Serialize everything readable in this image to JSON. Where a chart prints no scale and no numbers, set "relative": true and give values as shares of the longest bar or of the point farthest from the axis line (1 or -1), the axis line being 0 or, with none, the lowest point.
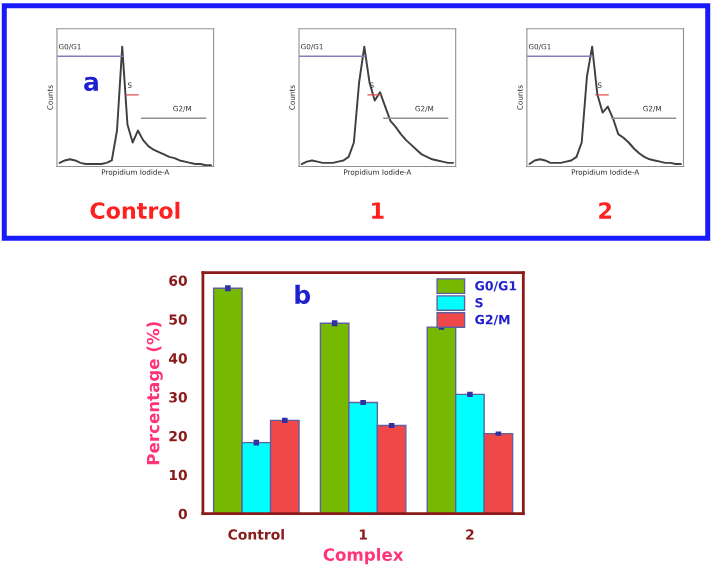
{
  "chart_data": [
    {
      "type": "line",
      "relative": true,
      "title": "Control",
      "xlabel": "Propidium Iodide-A",
      "ylabel": "Counts",
      "tick_labels": false,
      "color": "#404040",
      "annotations": [
        "G0/G1",
        "S",
        "G2/M",
        "a"
      ],
      "categories": [
        null,
        null,
        null,
        null,
        null,
        null,
        null,
        null,
        null,
        null,
        null,
        null,
        null,
        null,
        null,
        null,
        null,
        null,
        null,
        null,
        null,
        null,
        null,
        null,
        null,
        null,
        null,
        null,
        null,
        null
      ],
      "values": [
        0.03,
        0.05,
        0.06,
        0.05,
        0.03,
        0.02,
        0.02,
        0.02,
        0.02,
        0.03,
        0.05,
        0.3,
        1.0,
        0.35,
        0.2,
        0.3,
        0.22,
        0.17,
        0.14,
        0.12,
        0.1,
        0.08,
        0.07,
        0.05,
        0.04,
        0.03,
        0.02,
        0.02,
        0.01,
        0.01
      ]
    },
    {
      "type": "line",
      "relative": true,
      "title": "1",
      "xlabel": "Propidium Iodide-A",
      "ylabel": "Counts",
      "tick_labels": false,
      "color": "#404040",
      "annotations": [
        "G0/G1",
        "S",
        "G2/M"
      ],
      "categories": [
        null,
        null,
        null,
        null,
        null,
        null,
        null,
        null,
        null,
        null,
        null,
        null,
        null,
        null,
        null,
        null,
        null,
        null,
        null,
        null,
        null,
        null,
        null,
        null,
        null,
        null,
        null,
        null,
        null,
        null
      ],
      "values": [
        0.02,
        0.04,
        0.05,
        0.04,
        0.03,
        0.03,
        0.03,
        0.04,
        0.05,
        0.08,
        0.2,
        0.7,
        1.0,
        0.7,
        0.55,
        0.62,
        0.5,
        0.38,
        0.33,
        0.27,
        0.22,
        0.18,
        0.14,
        0.1,
        0.08,
        0.06,
        0.05,
        0.04,
        0.03,
        0.03
      ]
    },
    {
      "type": "line",
      "relative": true,
      "title": "2",
      "xlabel": "Propidium Iodide-A",
      "ylabel": "Counts",
      "tick_labels": false,
      "color": "#404040",
      "annotations": [
        "G0/G1",
        "S",
        "G2/M"
      ],
      "categories": [
        null,
        null,
        null,
        null,
        null,
        null,
        null,
        null,
        null,
        null,
        null,
        null,
        null,
        null,
        null,
        null,
        null,
        null,
        null,
        null,
        null,
        null,
        null,
        null,
        null,
        null,
        null,
        null,
        null,
        null
      ],
      "values": [
        0.02,
        0.05,
        0.06,
        0.05,
        0.03,
        0.03,
        0.03,
        0.04,
        0.05,
        0.08,
        0.2,
        0.75,
        1.0,
        0.6,
        0.45,
        0.5,
        0.4,
        0.27,
        0.24,
        0.2,
        0.15,
        0.11,
        0.08,
        0.06,
        0.05,
        0.04,
        0.03,
        0.03,
        0.02,
        0.02
      ]
    },
    {
      "type": "bar",
      "categories": [
        "Control",
        "1",
        "2"
      ],
      "xlabel": "Complex",
      "ylabel": "Percentage (%)",
      "annotations": [
        "b"
      ],
      "ylim": [
        0,
        62
      ],
      "yticks": [
        0,
        10,
        20,
        30,
        40,
        50,
        60
      ],
      "legend": "top right",
      "series": [
        {
          "name": "G0/G1",
          "color": "#76b900",
          "values": [
            58,
            49,
            48
          ],
          "errors": [
            0.4,
            0.4,
            0.3
          ]
        },
        {
          "name": "S",
          "color": "#00ffff",
          "values": [
            18.3,
            28.6,
            30.7
          ],
          "errors": [
            0.4,
            0.3,
            0.3
          ]
        },
        {
          "name": "G2/M",
          "color": "#f04848",
          "values": [
            24,
            22.7,
            20.6
          ],
          "errors": [
            0.3,
            0.3,
            0.2
          ]
        }
      ]
    }
  ]
}
